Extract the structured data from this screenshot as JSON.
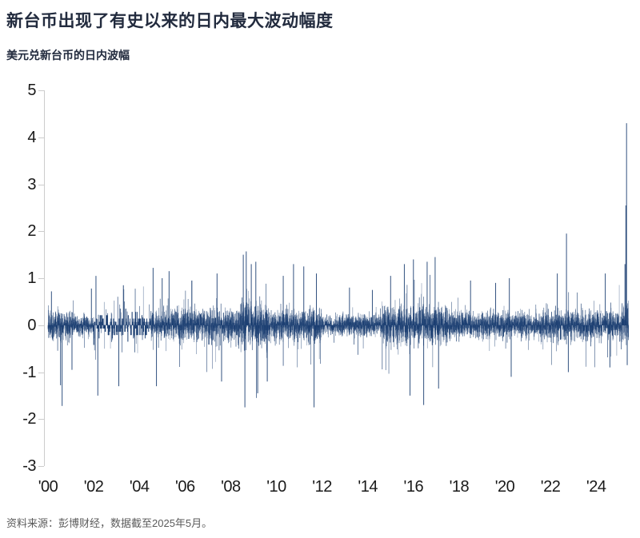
{
  "header": {
    "title": "新台币出现了有史以来的日内最大波动幅度",
    "subtitle": "美元兑新台币的日内波幅"
  },
  "footer": {
    "source": "资料来源：彭博财经，数据截至2025年5月。"
  },
  "colors": {
    "series_navy": "#1c3f72",
    "axis_gray": "#cccccc",
    "label_black": "#1a1a1a",
    "title_navy_black": "#222b3e",
    "source_gray": "#5a5a5a",
    "background": "#ffffff"
  },
  "chart_data": {
    "type": "bar",
    "title": "新台币出现了有史以来的日内最大波动幅度",
    "subtitle": "美元兑新台币的日内波幅",
    "source": "资料来源：彭博财经，数据截至2025年5月。",
    "xlabel": "",
    "ylabel": "",
    "ylim": [
      -3,
      5
    ],
    "yticks": [
      5,
      4,
      3,
      2,
      1,
      0,
      -1,
      -2,
      -3
    ],
    "xtick_years": [
      2000,
      2002,
      2004,
      2006,
      2008,
      2010,
      2012,
      2014,
      2016,
      2018,
      2020,
      2022,
      2024
    ],
    "xtick_labels": [
      "'00",
      "'02",
      "'04",
      "'06",
      "'08",
      "'10",
      "'12",
      "'14",
      "'16",
      "'18",
      "'20",
      "'22",
      "'24"
    ],
    "x_range": [
      2000.0,
      2025.42
    ],
    "points_per_year": 260,
    "grid": false,
    "legend": "none",
    "bar_color": "#1c3f72",
    "axis_color": "#cccccc",
    "seed": 20250531,
    "envelope": [
      [
        2000.0,
        2001.0,
        0.4
      ],
      [
        2001.0,
        2002.0,
        0.3
      ],
      [
        2002.0,
        2004.5,
        0.38
      ],
      [
        2004.5,
        2008.3,
        0.45
      ],
      [
        2008.3,
        2009.6,
        0.62
      ],
      [
        2009.6,
        2012.0,
        0.45
      ],
      [
        2012.0,
        2014.6,
        0.28
      ],
      [
        2014.6,
        2017.6,
        0.52
      ],
      [
        2017.6,
        2021.5,
        0.36
      ],
      [
        2021.5,
        2023.0,
        0.44
      ],
      [
        2023.0,
        2025.1,
        0.42
      ],
      [
        2025.1,
        2025.42,
        0.55
      ]
    ],
    "quantized_era": [
      2002.0,
      2004.5
    ],
    "notable_spikes": [
      [
        2000.15,
        0.72
      ],
      [
        2000.55,
        -1.28
      ],
      [
        2000.62,
        -1.72
      ],
      [
        2001.05,
        -0.95
      ],
      [
        2001.9,
        0.78
      ],
      [
        2002.1,
        1.05
      ],
      [
        2002.18,
        -1.5
      ],
      [
        2003.1,
        -1.3
      ],
      [
        2003.3,
        0.85
      ],
      [
        2004.6,
        1.22
      ],
      [
        2004.75,
        -1.3
      ],
      [
        2005.0,
        1.0
      ],
      [
        2005.3,
        1.15
      ],
      [
        2006.3,
        0.95
      ],
      [
        2007.4,
        1.1
      ],
      [
        2007.6,
        -1.2
      ],
      [
        2008.55,
        1.5
      ],
      [
        2008.62,
        -1.75
      ],
      [
        2008.68,
        1.57
      ],
      [
        2008.9,
        1.3
      ],
      [
        2009.1,
        1.35
      ],
      [
        2009.18,
        -1.45
      ],
      [
        2009.6,
        -1.2
      ],
      [
        2010.3,
        1.05
      ],
      [
        2010.75,
        1.3
      ],
      [
        2011.2,
        1.25
      ],
      [
        2011.65,
        -1.75
      ],
      [
        2011.75,
        1.1
      ],
      [
        2013.2,
        0.8
      ],
      [
        2014.2,
        0.75
      ],
      [
        2015.0,
        1.05
      ],
      [
        2015.6,
        1.3
      ],
      [
        2015.85,
        -1.5
      ],
      [
        2016.0,
        1.4
      ],
      [
        2016.45,
        -1.7
      ],
      [
        2016.6,
        1.35
      ],
      [
        2016.95,
        1.45
      ],
      [
        2017.1,
        -1.35
      ],
      [
        2018.5,
        0.95
      ],
      [
        2019.6,
        0.9
      ],
      [
        2020.2,
        1.0
      ],
      [
        2020.28,
        -1.1
      ],
      [
        2022.3,
        1.1
      ],
      [
        2022.7,
        1.95
      ],
      [
        2022.78,
        -1.0
      ],
      [
        2024.4,
        1.1
      ],
      [
        2024.6,
        -0.9
      ],
      [
        2025.26,
        1.3
      ],
      [
        2025.3,
        2.55
      ],
      [
        2025.33,
        4.3
      ],
      [
        2025.36,
        -0.85
      ]
    ]
  }
}
